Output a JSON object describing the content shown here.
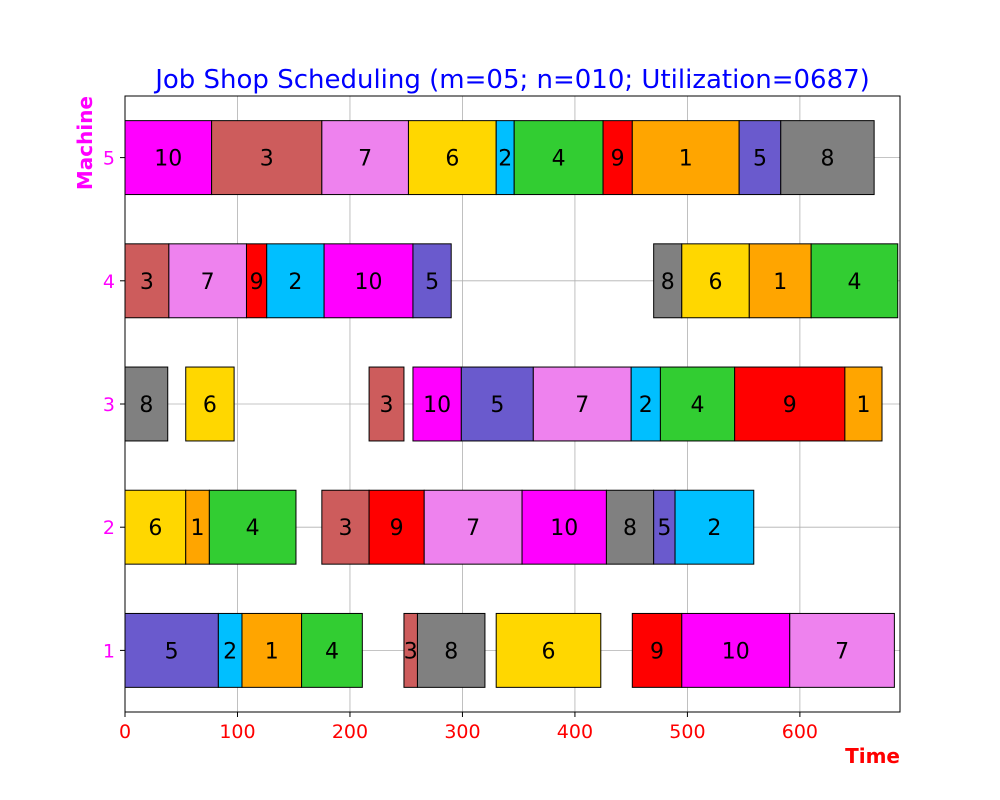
{
  "chart_data": {
    "type": "gantt",
    "title": "Job Shop Scheduling (m=05; n=010; Utilization=0687)",
    "xlabel": "Time",
    "ylabel": "Machine",
    "xlim": [
      0,
      689
    ],
    "ylim": [
      0.5,
      5.5
    ],
    "xticks": [
      0,
      100,
      200,
      300,
      400,
      500,
      600
    ],
    "yticks": [
      1,
      2,
      3,
      4,
      5
    ],
    "grid": true,
    "job_colors": {
      "1": "#FFA500",
      "2": "#00BFFF",
      "3": "#CD5C5C",
      "4": "#32CD32",
      "5": "#6A5ACD",
      "6": "#FFD700",
      "7": "#EE82EE",
      "8": "#808080",
      "9": "#FF0000",
      "10": "#FF00FF"
    },
    "machines": [
      {
        "machine": 1,
        "tasks": [
          {
            "job": "5",
            "start": 0,
            "end": 83
          },
          {
            "job": "2",
            "start": 83,
            "end": 104
          },
          {
            "job": "1",
            "start": 104,
            "end": 157
          },
          {
            "job": "4",
            "start": 157,
            "end": 211
          },
          {
            "job": "3",
            "start": 248,
            "end": 260
          },
          {
            "job": "8",
            "start": 260,
            "end": 320
          },
          {
            "job": "6",
            "start": 330,
            "end": 423
          },
          {
            "job": "9",
            "start": 451,
            "end": 495
          },
          {
            "job": "10",
            "start": 495,
            "end": 591
          },
          {
            "job": "7",
            "start": 591,
            "end": 684
          }
        ]
      },
      {
        "machine": 2,
        "tasks": [
          {
            "job": "6",
            "start": 0,
            "end": 54
          },
          {
            "job": "1",
            "start": 54,
            "end": 75
          },
          {
            "job": "4",
            "start": 75,
            "end": 152
          },
          {
            "job": "3",
            "start": 175,
            "end": 217
          },
          {
            "job": "9",
            "start": 217,
            "end": 266
          },
          {
            "job": "7",
            "start": 266,
            "end": 353
          },
          {
            "job": "10",
            "start": 353,
            "end": 428
          },
          {
            "job": "8",
            "start": 428,
            "end": 470
          },
          {
            "job": "5",
            "start": 470,
            "end": 489
          },
          {
            "job": "2",
            "start": 489,
            "end": 559
          }
        ]
      },
      {
        "machine": 3,
        "tasks": [
          {
            "job": "8",
            "start": 0,
            "end": 38
          },
          {
            "job": "6",
            "start": 54,
            "end": 97
          },
          {
            "job": "3",
            "start": 217,
            "end": 248
          },
          {
            "job": "10",
            "start": 256,
            "end": 299
          },
          {
            "job": "5",
            "start": 299,
            "end": 363
          },
          {
            "job": "7",
            "start": 363,
            "end": 450
          },
          {
            "job": "2",
            "start": 450,
            "end": 476
          },
          {
            "job": "4",
            "start": 476,
            "end": 542
          },
          {
            "job": "9",
            "start": 542,
            "end": 640
          },
          {
            "job": "1",
            "start": 640,
            "end": 673
          }
        ]
      },
      {
        "machine": 4,
        "tasks": [
          {
            "job": "3",
            "start": 0,
            "end": 39
          },
          {
            "job": "7",
            "start": 39,
            "end": 108
          },
          {
            "job": "9",
            "start": 108,
            "end": 126
          },
          {
            "job": "2",
            "start": 126,
            "end": 177
          },
          {
            "job": "10",
            "start": 177,
            "end": 256
          },
          {
            "job": "5",
            "start": 256,
            "end": 290
          },
          {
            "job": "8",
            "start": 470,
            "end": 495
          },
          {
            "job": "6",
            "start": 495,
            "end": 555
          },
          {
            "job": "1",
            "start": 555,
            "end": 610
          },
          {
            "job": "4",
            "start": 610,
            "end": 687
          }
        ]
      },
      {
        "machine": 5,
        "tasks": [
          {
            "job": "10",
            "start": 0,
            "end": 77
          },
          {
            "job": "3",
            "start": 77,
            "end": 175
          },
          {
            "job": "7",
            "start": 175,
            "end": 252
          },
          {
            "job": "6",
            "start": 252,
            "end": 330
          },
          {
            "job": "2",
            "start": 330,
            "end": 346
          },
          {
            "job": "4",
            "start": 346,
            "end": 425
          },
          {
            "job": "9",
            "start": 425,
            "end": 451
          },
          {
            "job": "1",
            "start": 451,
            "end": 546
          },
          {
            "job": "5",
            "start": 546,
            "end": 583
          },
          {
            "job": "8",
            "start": 583,
            "end": 666
          }
        ]
      }
    ]
  }
}
